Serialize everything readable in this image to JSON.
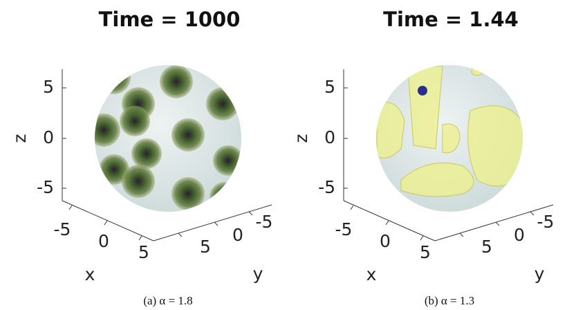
{
  "panels": [
    {
      "title": "Time = 1000",
      "xlabel": "x",
      "ylabel": "y",
      "zlabel": "z",
      "xticks": [
        -5,
        0,
        5
      ],
      "yticks": [
        5,
        0,
        -5
      ],
      "zticks": [
        5,
        0,
        -5
      ],
      "caption": "(a) α = 1.8"
    },
    {
      "title": "Time = 1.44",
      "xlabel": "x",
      "ylabel": "y",
      "zlabel": "z",
      "xticks": [
        -5,
        0,
        5
      ],
      "yticks": [
        5,
        0,
        -5
      ],
      "zticks": [
        5,
        0,
        -5
      ],
      "caption": "(b) α = 1.3"
    }
  ]
}
